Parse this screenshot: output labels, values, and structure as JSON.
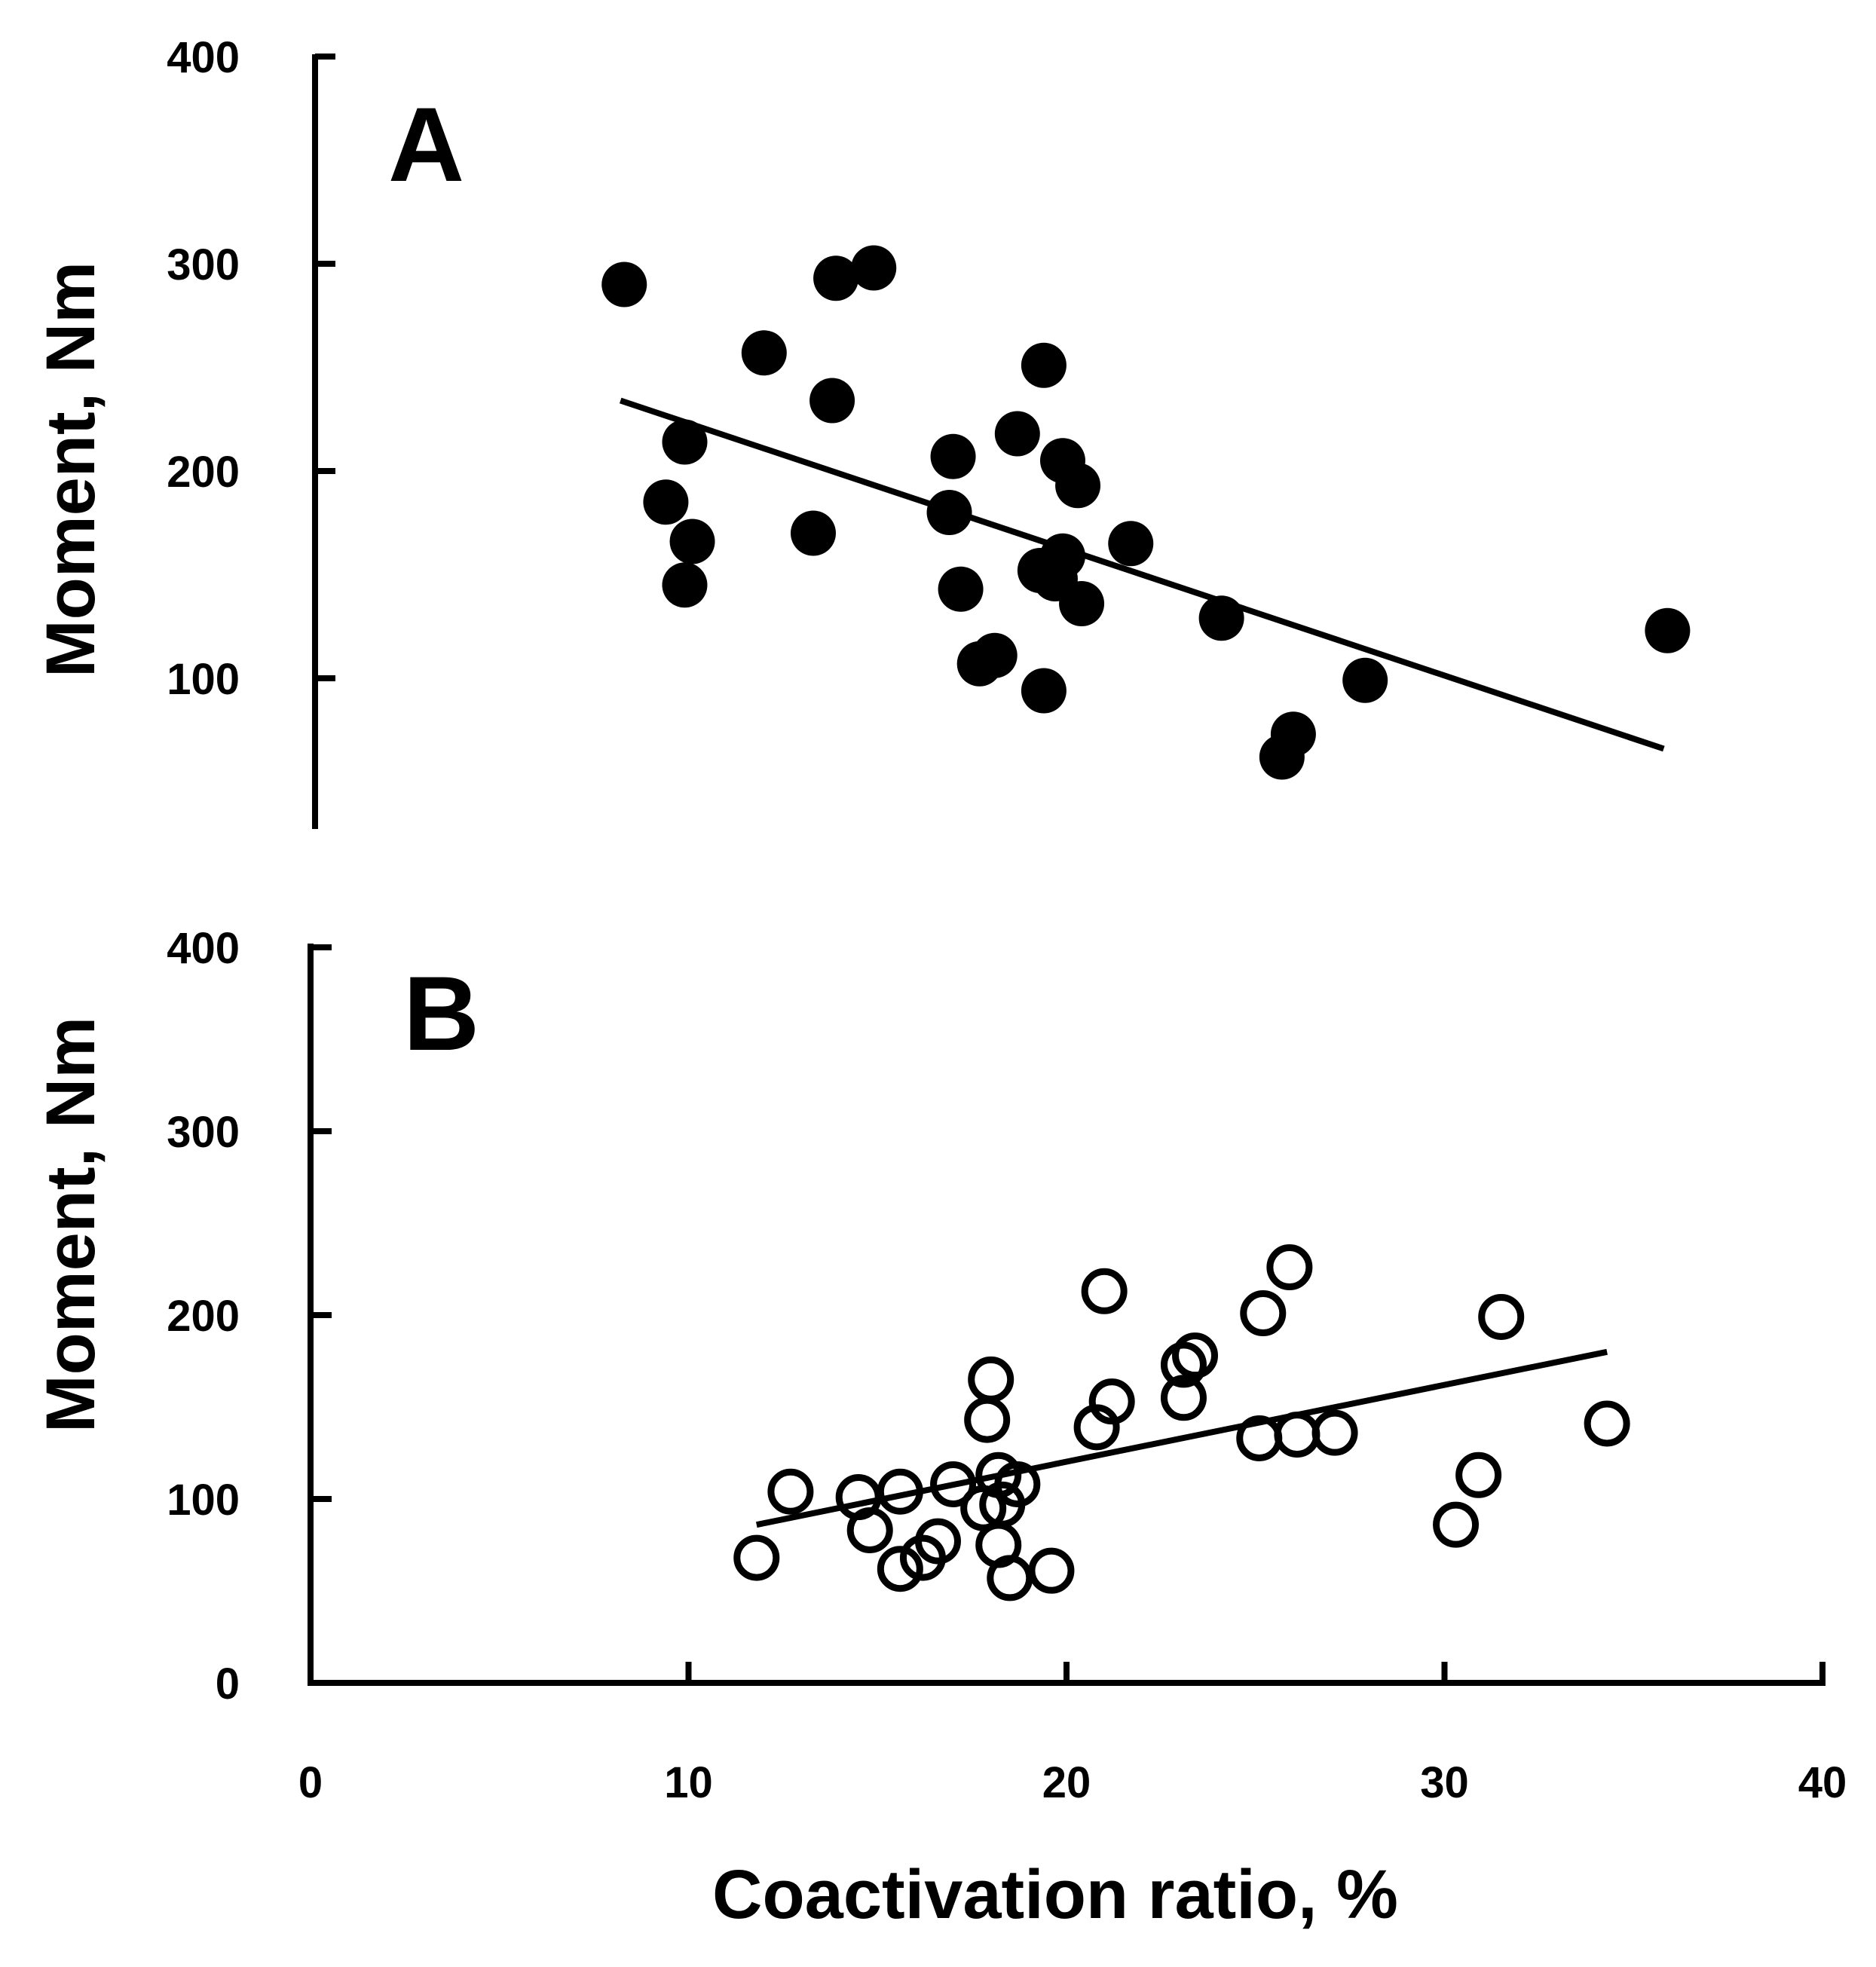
{
  "chart_data": [
    {
      "panel": "A",
      "type": "scatter",
      "marker": "filled",
      "ylabel": "Moment, Nm",
      "xlabel": "",
      "xlim": [
        0,
        40
      ],
      "ylim": [
        30,
        400
      ],
      "yticks": [
        100,
        200,
        300,
        400
      ],
      "ytick_labels": [
        "100",
        "200",
        "300",
        "400"
      ],
      "points": [
        {
          "x": 8.3,
          "y": 290
        },
        {
          "x": 13.9,
          "y": 293
        },
        {
          "x": 14.9,
          "y": 298
        },
        {
          "x": 12.0,
          "y": 257
        },
        {
          "x": 13.8,
          "y": 234
        },
        {
          "x": 9.9,
          "y": 214
        },
        {
          "x": 9.4,
          "y": 185
        },
        {
          "x": 10.1,
          "y": 166
        },
        {
          "x": 9.9,
          "y": 145
        },
        {
          "x": 13.3,
          "y": 170
        },
        {
          "x": 17.0,
          "y": 207
        },
        {
          "x": 16.9,
          "y": 180
        },
        {
          "x": 17.2,
          "y": 143
        },
        {
          "x": 17.7,
          "y": 107
        },
        {
          "x": 18.1,
          "y": 111
        },
        {
          "x": 18.7,
          "y": 218
        },
        {
          "x": 19.4,
          "y": 251
        },
        {
          "x": 19.9,
          "y": 205
        },
        {
          "x": 20.3,
          "y": 193
        },
        {
          "x": 19.9,
          "y": 159
        },
        {
          "x": 19.3,
          "y": 152
        },
        {
          "x": 19.7,
          "y": 148
        },
        {
          "x": 20.4,
          "y": 136
        },
        {
          "x": 19.4,
          "y": 94
        },
        {
          "x": 21.7,
          "y": 165
        },
        {
          "x": 24.1,
          "y": 129
        },
        {
          "x": 26.0,
          "y": 73
        },
        {
          "x": 25.7,
          "y": 62
        },
        {
          "x": 27.9,
          "y": 99
        },
        {
          "x": 35.9,
          "y": 123
        }
      ],
      "trendline": {
        "x": [
          8.2,
          35.8
        ],
        "y": [
          234,
          66
        ]
      }
    },
    {
      "panel": "B",
      "type": "scatter",
      "marker": "open",
      "ylabel": "Moment, Nm",
      "xlabel": "Coactivation ratio, %",
      "xlim": [
        0,
        40
      ],
      "ylim": [
        0,
        400
      ],
      "xticks": [
        0,
        10,
        20,
        30,
        40
      ],
      "xtick_labels": [
        "0",
        "10",
        "20",
        "30",
        "40"
      ],
      "yticks": [
        0,
        100,
        200,
        300,
        400
      ],
      "ytick_labels": [
        "0",
        "100",
        "200",
        "300",
        "400"
      ],
      "points": [
        {
          "x": 11.8,
          "y": 68
        },
        {
          "x": 12.7,
          "y": 104
        },
        {
          "x": 14.5,
          "y": 101
        },
        {
          "x": 14.8,
          "y": 83
        },
        {
          "x": 15.6,
          "y": 104
        },
        {
          "x": 15.6,
          "y": 62
        },
        {
          "x": 16.2,
          "y": 68
        },
        {
          "x": 16.6,
          "y": 77
        },
        {
          "x": 17.0,
          "y": 108
        },
        {
          "x": 17.8,
          "y": 95
        },
        {
          "x": 18.0,
          "y": 165
        },
        {
          "x": 17.9,
          "y": 143
        },
        {
          "x": 18.2,
          "y": 113
        },
        {
          "x": 18.7,
          "y": 108
        },
        {
          "x": 18.3,
          "y": 97
        },
        {
          "x": 18.2,
          "y": 75
        },
        {
          "x": 18.5,
          "y": 57
        },
        {
          "x": 19.6,
          "y": 61
        },
        {
          "x": 20.8,
          "y": 139
        },
        {
          "x": 21.2,
          "y": 153
        },
        {
          "x": 21.0,
          "y": 213
        },
        {
          "x": 23.1,
          "y": 173
        },
        {
          "x": 23.4,
          "y": 178
        },
        {
          "x": 23.1,
          "y": 155
        },
        {
          "x": 25.1,
          "y": 133
        },
        {
          "x": 25.2,
          "y": 201
        },
        {
          "x": 25.9,
          "y": 226
        },
        {
          "x": 26.1,
          "y": 135
        },
        {
          "x": 27.1,
          "y": 136
        },
        {
          "x": 30.3,
          "y": 86
        },
        {
          "x": 30.9,
          "y": 113
        },
        {
          "x": 31.5,
          "y": 199
        },
        {
          "x": 34.3,
          "y": 141
        }
      ],
      "trendline": {
        "x": [
          11.8,
          34.3
        ],
        "y": [
          86,
          180
        ]
      }
    }
  ]
}
